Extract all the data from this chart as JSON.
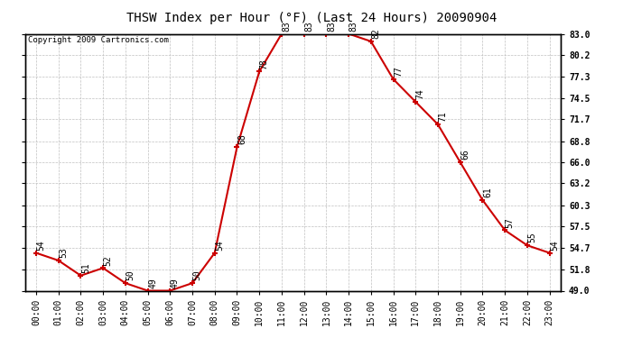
{
  "title": "THSW Index per Hour (°F) (Last 24 Hours) 20090904",
  "copyright": "Copyright 2009 Cartronics.com",
  "hours": [
    0,
    1,
    2,
    3,
    4,
    5,
    6,
    7,
    8,
    9,
    10,
    11,
    12,
    13,
    14,
    15,
    16,
    17,
    18,
    19,
    20,
    21,
    22,
    23
  ],
  "values": [
    54,
    53,
    51,
    52,
    50,
    49,
    49,
    50,
    54,
    68,
    78,
    83,
    83,
    83,
    83,
    82,
    77,
    74,
    71,
    66,
    61,
    57,
    55,
    54
  ],
  "xlabels": [
    "00:00",
    "01:00",
    "02:00",
    "03:00",
    "04:00",
    "05:00",
    "06:00",
    "07:00",
    "08:00",
    "09:00",
    "10:00",
    "11:00",
    "12:00",
    "13:00",
    "14:00",
    "15:00",
    "16:00",
    "17:00",
    "18:00",
    "19:00",
    "20:00",
    "21:00",
    "22:00",
    "23:00"
  ],
  "ylim": [
    49.0,
    83.0
  ],
  "yticks": [
    49.0,
    51.8,
    54.7,
    57.5,
    60.3,
    63.2,
    66.0,
    68.8,
    71.7,
    74.5,
    77.3,
    80.2,
    83.0
  ],
  "ytick_labels": [
    "49.0",
    "51.8",
    "54.7",
    "57.5",
    "60.3",
    "63.2",
    "66.0",
    "68.8",
    "71.7",
    "74.5",
    "77.3",
    "80.2",
    "83.0"
  ],
  "line_color": "#cc0000",
  "marker_color": "#cc0000",
  "grid_color": "#c0c0c0",
  "bg_color": "#ffffff",
  "title_fontsize": 10,
  "label_fontsize": 7,
  "annotation_fontsize": 7,
  "copyright_fontsize": 6.5
}
